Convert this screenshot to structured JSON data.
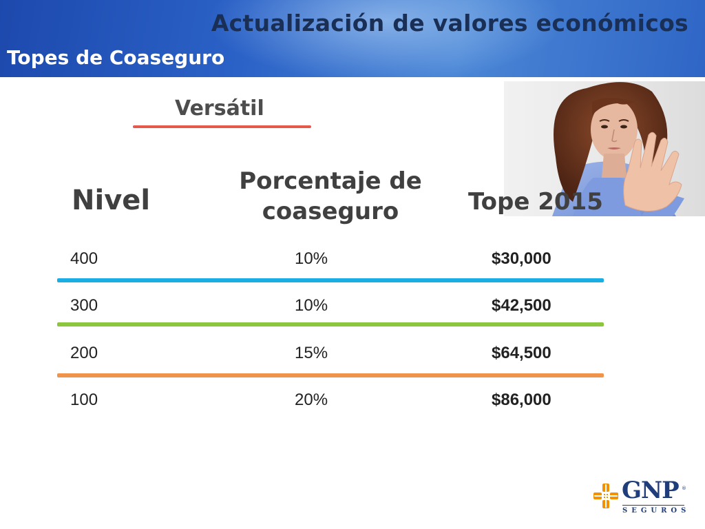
{
  "header": {
    "title": "Actualización de valores económicos",
    "subtitle": "Topes de Coaseguro"
  },
  "product": {
    "name": "Versátil",
    "underline_color": "#e35a4c"
  },
  "table": {
    "columns": [
      "Nivel",
      "Porcentaje de coaseguro",
      "Tope 2015"
    ],
    "rows": [
      {
        "nivel": "400",
        "porcentaje": "10%",
        "tope": "$30,000"
      },
      {
        "nivel": "300",
        "porcentaje": "10%",
        "tope": "$42,500"
      },
      {
        "nivel": "200",
        "porcentaje": "15%",
        "tope": "$64,500"
      },
      {
        "nivel": "100",
        "porcentaje": "20%",
        "tope": "$86,000"
      }
    ],
    "separator_colors": [
      "#1aaee5",
      "#8cc63f",
      "#f0944c"
    ]
  },
  "logo": {
    "brand": "GNP",
    "registered": "®",
    "tagline": "SEGUROS",
    "mark_color": "#f39200"
  },
  "photo": {
    "subject": "woman-stop-hand-gesture"
  }
}
